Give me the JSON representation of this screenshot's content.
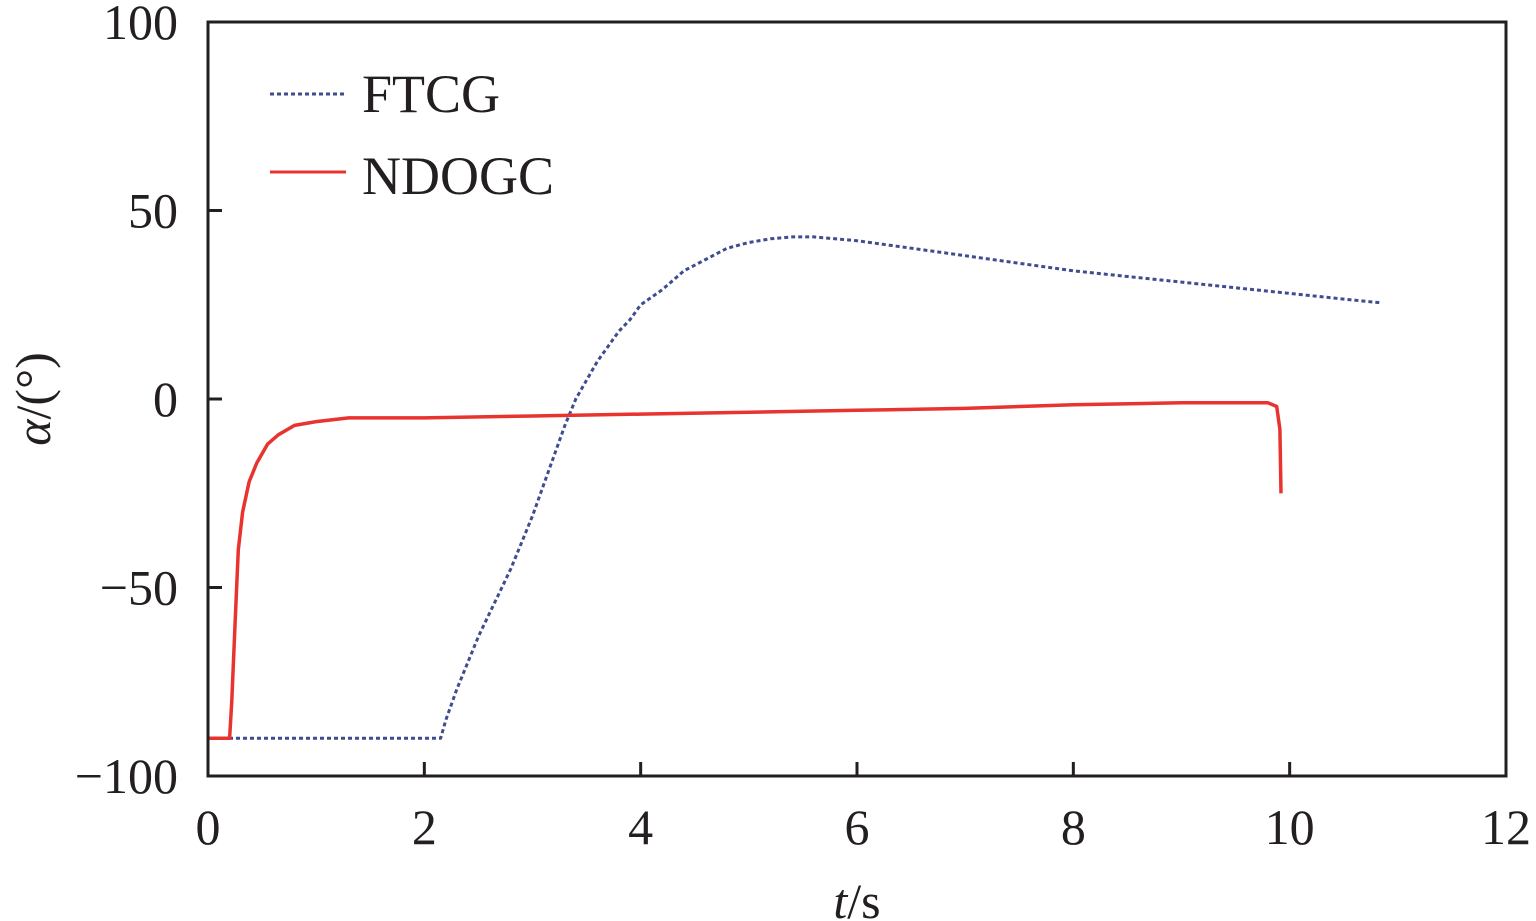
{
  "chart_data": {
    "type": "line",
    "xlabel": "t/s",
    "ylabel": "α/(°)",
    "xlabel_parts": {
      "var": "t",
      "unit": "/s"
    },
    "ylabel_parts": {
      "var": "α",
      "unit": "/(°)"
    },
    "xlim": [
      0,
      12
    ],
    "ylim": [
      -100,
      100
    ],
    "x_ticks": [
      0,
      2,
      4,
      6,
      8,
      10,
      12
    ],
    "y_ticks": [
      -100,
      -50,
      0,
      50,
      100
    ],
    "x_tick_labels": [
      "0",
      "2",
      "4",
      "6",
      "8",
      "10",
      "12"
    ],
    "y_tick_labels": [
      "−100",
      "−50",
      "0",
      "50",
      "100"
    ],
    "grid": false,
    "legend_position": "top-left",
    "series": [
      {
        "name": "FTCG",
        "color": "#3f4c8f",
        "style": "dotted",
        "points": [
          [
            0.0,
            -90
          ],
          [
            2.15,
            -90
          ],
          [
            2.2,
            -85
          ],
          [
            2.3,
            -77
          ],
          [
            2.4,
            -70
          ],
          [
            2.5,
            -63
          ],
          [
            2.6,
            -57
          ],
          [
            2.7,
            -51
          ],
          [
            2.8,
            -45
          ],
          [
            2.9,
            -38
          ],
          [
            3.0,
            -31
          ],
          [
            3.1,
            -23
          ],
          [
            3.2,
            -15
          ],
          [
            3.3,
            -7
          ],
          [
            3.4,
            0
          ],
          [
            3.5,
            5
          ],
          [
            3.6,
            10
          ],
          [
            3.7,
            14
          ],
          [
            3.8,
            18
          ],
          [
            3.9,
            21
          ],
          [
            4.0,
            25
          ],
          [
            4.2,
            29
          ],
          [
            4.4,
            34
          ],
          [
            4.6,
            37
          ],
          [
            4.8,
            40
          ],
          [
            5.0,
            41.5
          ],
          [
            5.2,
            42.5
          ],
          [
            5.4,
            43
          ],
          [
            5.6,
            43
          ],
          [
            5.8,
            42.5
          ],
          [
            6.0,
            42
          ],
          [
            6.5,
            40
          ],
          [
            7.0,
            38
          ],
          [
            7.5,
            36
          ],
          [
            8.0,
            34
          ],
          [
            8.5,
            32.5
          ],
          [
            9.0,
            31
          ],
          [
            9.5,
            29.5
          ],
          [
            10.0,
            28
          ],
          [
            10.5,
            26.5
          ],
          [
            10.85,
            25.5
          ]
        ]
      },
      {
        "name": "NDOGC",
        "color": "#e8332e",
        "style": "solid",
        "points": [
          [
            0.0,
            -90
          ],
          [
            0.2,
            -90
          ],
          [
            0.22,
            -80
          ],
          [
            0.25,
            -60
          ],
          [
            0.28,
            -40
          ],
          [
            0.32,
            -30
          ],
          [
            0.38,
            -22
          ],
          [
            0.45,
            -17
          ],
          [
            0.55,
            -12
          ],
          [
            0.65,
            -9.5
          ],
          [
            0.8,
            -7
          ],
          [
            1.0,
            -6
          ],
          [
            1.3,
            -5
          ],
          [
            2.0,
            -5
          ],
          [
            3.0,
            -4.5
          ],
          [
            4.0,
            -4
          ],
          [
            5.0,
            -3.5
          ],
          [
            6.0,
            -3
          ],
          [
            7.0,
            -2.5
          ],
          [
            8.0,
            -1.5
          ],
          [
            9.0,
            -1
          ],
          [
            9.8,
            -1
          ],
          [
            9.88,
            -2
          ],
          [
            9.91,
            -8
          ],
          [
            9.92,
            -25
          ]
        ]
      }
    ]
  }
}
